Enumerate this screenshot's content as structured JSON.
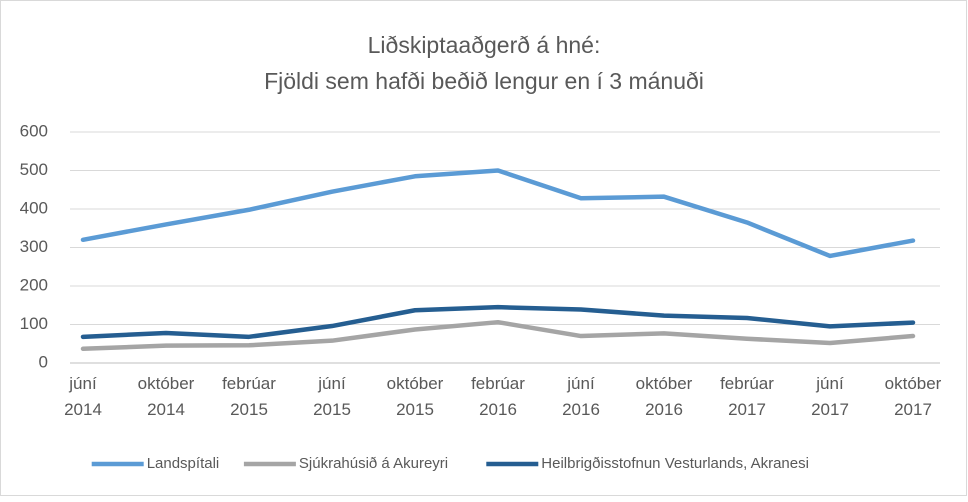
{
  "chart_data": {
    "type": "line",
    "title": "Liðskiptaaðgerð á hné:",
    "subtitle": "Fjöldi sem hafði beðið lengur en í 3 mánuði",
    "categories": [
      "júní 2014",
      "október 2014",
      "febrúar 2015",
      "júní 2015",
      "október 2015",
      "febrúar 2016",
      "júní 2016",
      "október 2016",
      "febrúar 2017",
      "júní 2017",
      "október 2017"
    ],
    "series": [
      {
        "name": "Landspítali",
        "color": "#5b9bd5",
        "values": [
          320,
          360,
          398,
          445,
          485,
          500,
          428,
          432,
          365,
          278,
          318
        ]
      },
      {
        "name": "Sjúkrahúsið á Akureyri",
        "color": "#a5a5a5",
        "values": [
          37,
          45,
          46,
          58,
          87,
          106,
          70,
          77,
          63,
          52,
          70
        ]
      },
      {
        "name": "Heilbrigðisstofnun Vesturlands, Akranesi",
        "color": "#255e91",
        "values": [
          68,
          78,
          68,
          96,
          137,
          145,
          139,
          123,
          117,
          95,
          105
        ]
      }
    ],
    "ylim": [
      0,
      600
    ],
    "yticks": [
      0,
      100,
      200,
      300,
      400,
      500,
      600
    ],
    "grid": true,
    "legend": "bottom"
  }
}
